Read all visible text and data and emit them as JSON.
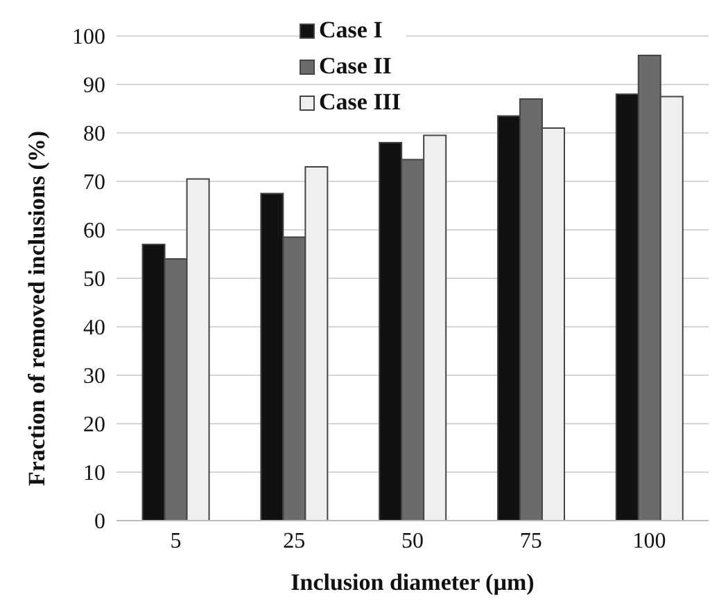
{
  "chart_data": {
    "type": "bar",
    "xlabel": "Inclusion diameter (µm)",
    "ylabel": "Fraction of removed inclusions (%)",
    "categories": [
      "5",
      "25",
      "50",
      "75",
      "100"
    ],
    "series": [
      {
        "name": "Case I",
        "color": "#111111",
        "values": [
          57,
          67.5,
          78,
          83.5,
          88
        ]
      },
      {
        "name": "Case II",
        "color": "#6b6b6b",
        "values": [
          54,
          58.5,
          74.5,
          87,
          96
        ]
      },
      {
        "name": "Case III",
        "color": "#efefef",
        "values": [
          70.5,
          73,
          79.5,
          81,
          87.5
        ]
      }
    ],
    "ylim": [
      0,
      100
    ],
    "yticks": [
      0,
      10,
      20,
      30,
      40,
      50,
      60,
      70,
      80,
      90,
      100
    ],
    "grid": "y",
    "legend": "top"
  }
}
